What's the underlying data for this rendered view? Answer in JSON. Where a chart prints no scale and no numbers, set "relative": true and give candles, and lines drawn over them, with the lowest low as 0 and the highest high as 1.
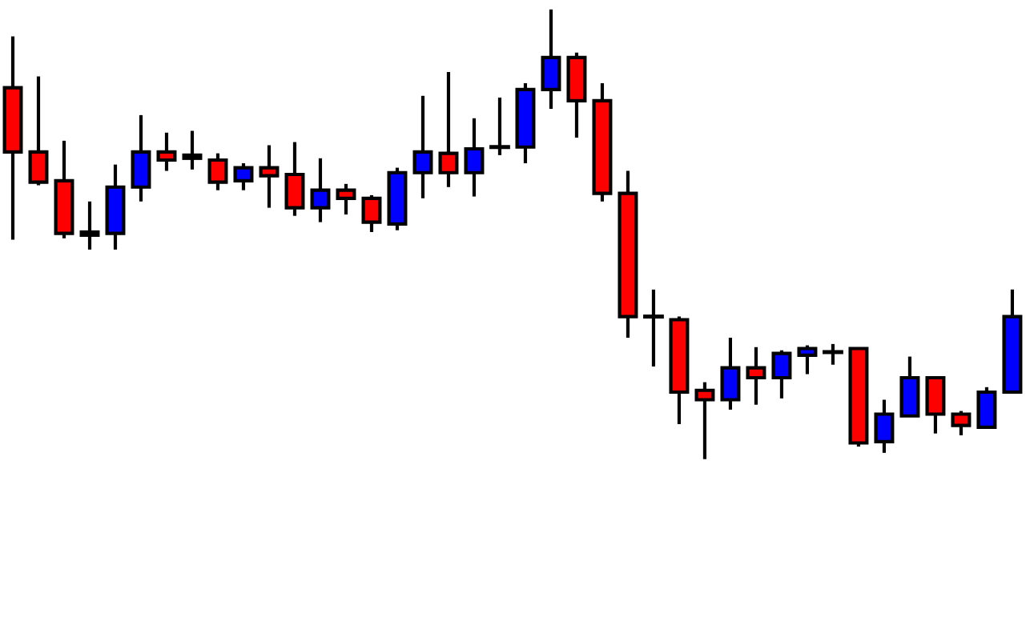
{
  "chart_data": {
    "type": "candlestick",
    "relative": true,
    "categories": [
      null,
      null,
      null,
      null,
      null,
      null,
      null,
      null,
      null,
      null,
      null,
      null,
      null,
      null,
      null,
      null,
      null,
      null,
      null,
      null,
      null,
      null,
      null,
      null,
      null,
      null,
      null,
      null,
      null,
      null,
      null,
      null,
      null,
      null,
      null,
      null,
      null,
      null,
      null,
      null
    ],
    "ohlc": [
      [
        0.826,
        0.94,
        0.488,
        0.683
      ],
      [
        0.683,
        0.851,
        0.609,
        0.616
      ],
      [
        0.619,
        0.708,
        0.491,
        0.502
      ],
      [
        0.498,
        0.573,
        0.466,
        0.505
      ],
      [
        0.502,
        0.655,
        0.466,
        0.605
      ],
      [
        0.605,
        0.765,
        0.573,
        0.683
      ],
      [
        0.683,
        0.726,
        0.641,
        0.665
      ],
      [
        0.669,
        0.73,
        0.644,
        0.676
      ],
      [
        0.665,
        0.68,
        0.598,
        0.616
      ],
      [
        0.619,
        0.658,
        0.598,
        0.648
      ],
      [
        0.648,
        0.698,
        0.559,
        0.63
      ],
      [
        0.633,
        0.705,
        0.541,
        0.559
      ],
      [
        0.559,
        0.669,
        0.527,
        0.598
      ],
      [
        0.598,
        0.612,
        0.544,
        0.58
      ],
      [
        0.58,
        0.587,
        0.505,
        0.527
      ],
      [
        0.523,
        0.648,
        0.509,
        0.637
      ],
      [
        0.637,
        0.808,
        0.58,
        0.683
      ],
      [
        0.68,
        0.861,
        0.605,
        0.637
      ],
      [
        0.637,
        0.758,
        0.584,
        0.69
      ],
      [
        0.694,
        0.804,
        0.676,
        0.694
      ],
      [
        0.694,
        0.836,
        0.658,
        0.822
      ],
      [
        0.822,
        1.0,
        0.779,
        0.893
      ],
      [
        0.893,
        0.904,
        0.715,
        0.797
      ],
      [
        0.797,
        0.836,
        0.573,
        0.591
      ],
      [
        0.591,
        0.641,
        0.27,
        0.317
      ],
      [
        0.317,
        0.377,
        0.206,
        0.317
      ],
      [
        0.31,
        0.317,
        0.078,
        0.149
      ],
      [
        0.153,
        0.171,
        0.0,
        0.132
      ],
      [
        0.132,
        0.27,
        0.11,
        0.203
      ],
      [
        0.203,
        0.249,
        0.121,
        0.181
      ],
      [
        0.181,
        0.242,
        0.135,
        0.235
      ],
      [
        0.231,
        0.253,
        0.189,
        0.246
      ],
      [
        0.238,
        0.256,
        0.21,
        0.238
      ],
      [
        0.246,
        0.246,
        0.028,
        0.036
      ],
      [
        0.039,
        0.132,
        0.014,
        0.1
      ],
      [
        0.096,
        0.228,
        0.096,
        0.181
      ],
      [
        0.181,
        0.181,
        0.057,
        0.1
      ],
      [
        0.1,
        0.107,
        0.053,
        0.075
      ],
      [
        0.071,
        0.16,
        0.068,
        0.149
      ],
      [
        0.149,
        0.377,
        0.149,
        0.317
      ]
    ],
    "colors": [
      "#ff0000",
      "#ff0000",
      "#ff0000",
      "#0000ff",
      "#0000ff",
      "#0000ff",
      "#ff0000",
      "#0000ff",
      "#ff0000",
      "#0000ff",
      "#ff0000",
      "#ff0000",
      "#0000ff",
      "#ff0000",
      "#ff0000",
      "#0000ff",
      "#0000ff",
      "#ff0000",
      "#0000ff",
      "#000000",
      "#0000ff",
      "#0000ff",
      "#ff0000",
      "#ff0000",
      "#ff0000",
      "#000000",
      "#ff0000",
      "#ff0000",
      "#0000ff",
      "#ff0000",
      "#0000ff",
      "#0000ff",
      "#000000",
      "#ff0000",
      "#0000ff",
      "#0000ff",
      "#ff0000",
      "#ff0000",
      "#0000ff",
      "#0000ff"
    ]
  }
}
